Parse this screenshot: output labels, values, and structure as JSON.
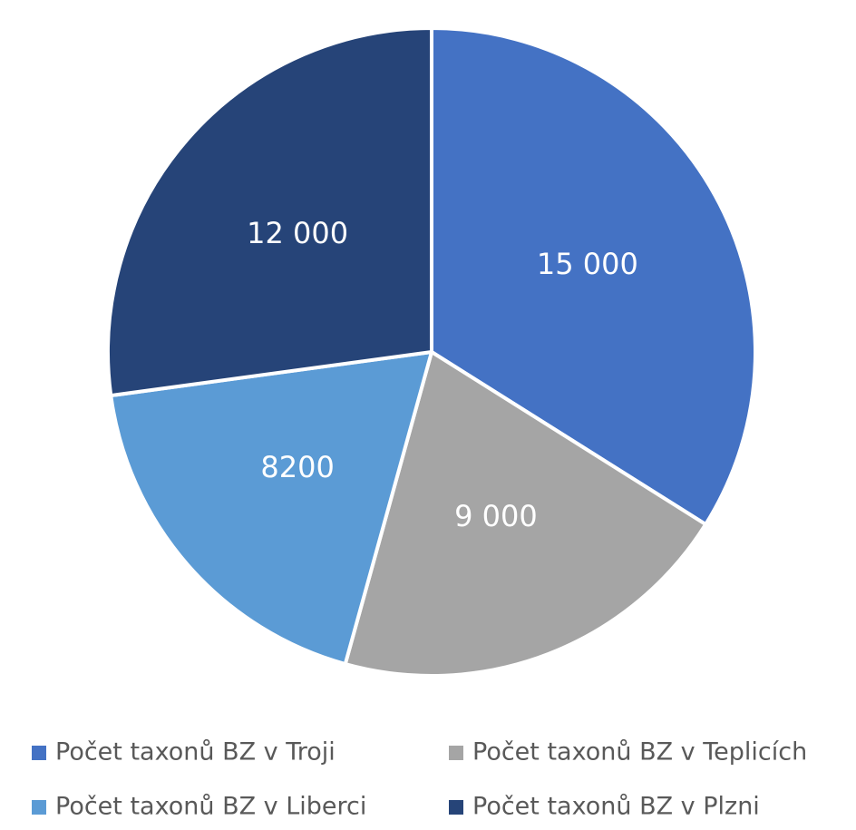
{
  "chart_data": {
    "type": "pie",
    "categories": [
      "Počet taxonů BZ v Troji",
      "Počet taxonů BZ v Teplicích",
      "Počet taxonů BZ v Liberci",
      "Počet taxonů BZ v Plzni"
    ],
    "values": [
      15000,
      9000,
      8200,
      12000
    ],
    "value_labels": [
      "15 000",
      "9 000",
      "8200",
      "12 000"
    ],
    "colors": [
      "#4472c4",
      "#a5a5a5",
      "#5b9bd5",
      "#264478"
    ],
    "legend": "bottom"
  }
}
